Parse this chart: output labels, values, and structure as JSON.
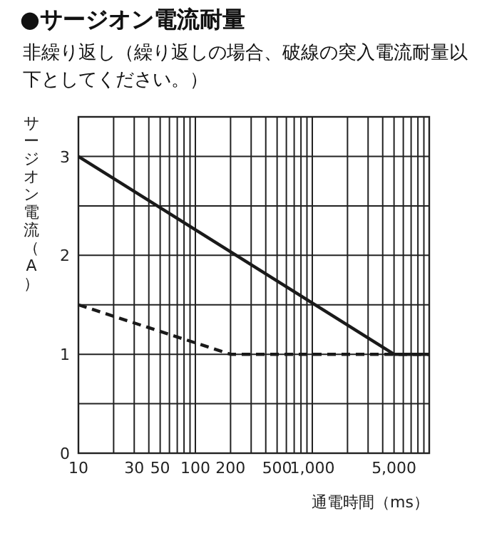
{
  "chart_data": {
    "type": "line",
    "title": "●サージオン電流耐量",
    "subtitle": "非繰り返し（繰り返しの場合、破線の突入電流耐量以下としてください。）",
    "xlabel": "通電時間（ms）",
    "ylabel": "サージオン電流（A）",
    "log": "x",
    "xlim": [
      10,
      10000
    ],
    "xticks": [
      10,
      {
        "value": 20,
        "label": null
      },
      30,
      {
        "value": 40,
        "label": null
      },
      50,
      {
        "value": 60,
        "label": null
      },
      {
        "value": 70,
        "label": null
      },
      {
        "value": 80,
        "label": null
      },
      {
        "value": 90,
        "label": null
      },
      100,
      200,
      {
        "value": 300,
        "label": null
      },
      {
        "value": 400,
        "label": null
      },
      500,
      {
        "value": 600,
        "label": null
      },
      {
        "value": 700,
        "label": null
      },
      {
        "value": 800,
        "label": null
      },
      {
        "value": 900,
        "label": null
      },
      {
        "value": 1000,
        "label": "1,000"
      },
      {
        "value": 2000,
        "label": null
      },
      {
        "value": 3000,
        "label": null
      },
      {
        "value": 4000,
        "label": null
      },
      {
        "value": 5000,
        "label": "5,000"
      },
      {
        "value": 6000,
        "label": null
      },
      {
        "value": 7000,
        "label": null
      },
      {
        "value": 8000,
        "label": null
      },
      {
        "value": 9000,
        "label": null
      },
      {
        "value": 10000,
        "label": null
      }
    ],
    "ylim": [
      0,
      3.4
    ],
    "yticks": [
      0,
      {
        "value": 0.5,
        "label": null
      },
      1,
      {
        "value": 1.5,
        "label": null
      },
      2,
      {
        "value": 2.5,
        "label": null
      },
      3
    ],
    "grid": true,
    "marker": "none",
    "series": [
      {
        "color": "#1a1a1a",
        "line_style": "solid",
        "x": [
          10,
          5000,
          10000
        ],
        "values": [
          3,
          1,
          1
        ]
      },
      {
        "color": "#1a1a1a",
        "line_style": "dashed",
        "x": [
          10,
          200,
          10000
        ],
        "values": [
          1.5,
          1,
          1
        ]
      }
    ]
  }
}
